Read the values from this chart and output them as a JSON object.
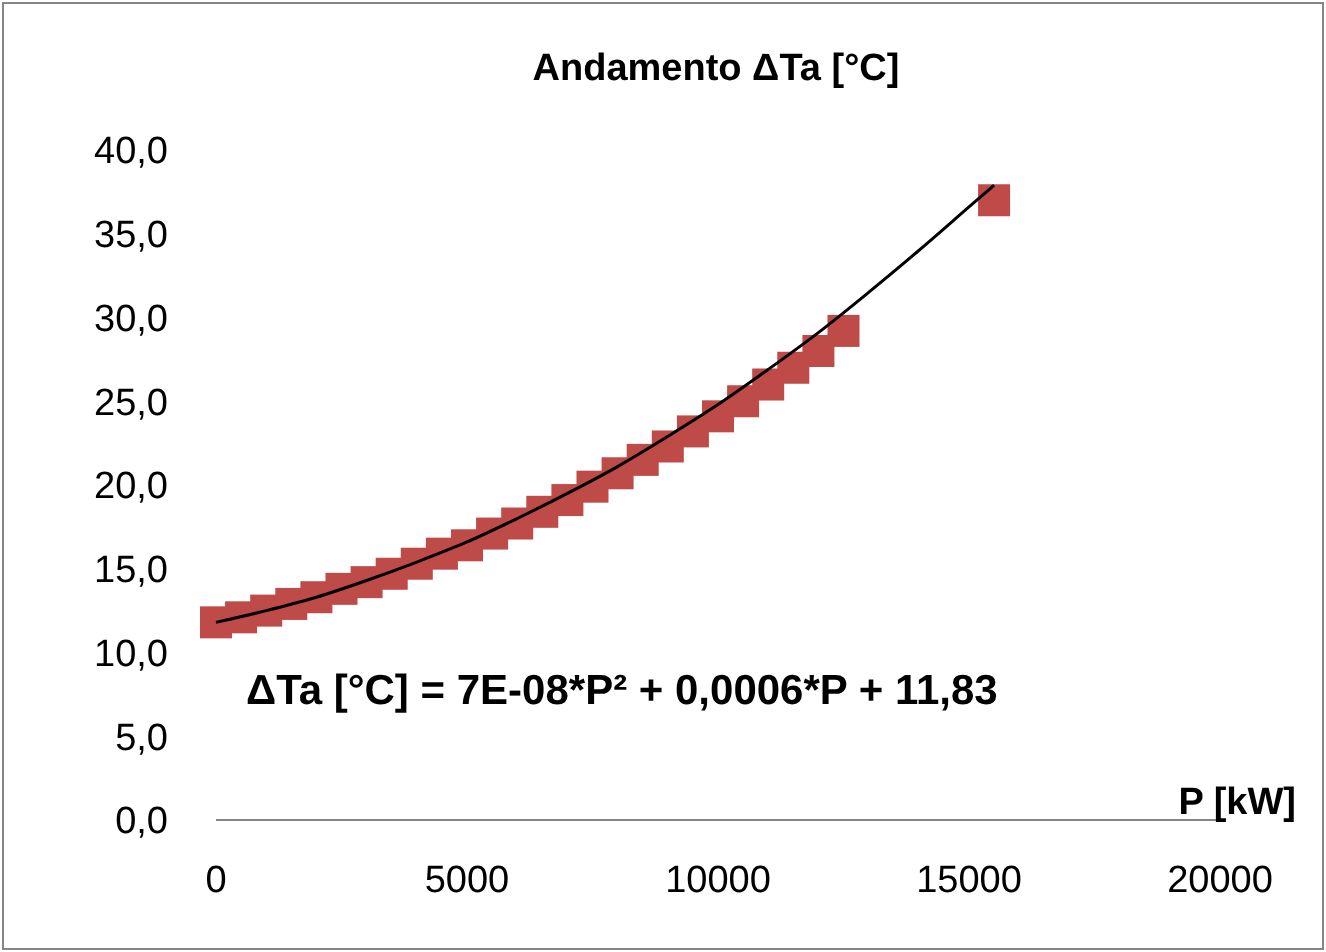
{
  "chart_data": {
    "type": "scatter",
    "title": "Andamento ΔTa [°C]",
    "xlabel": "P [kW]",
    "xlim": [
      0,
      20000
    ],
    "xticks": [
      0,
      5000,
      10000,
      15000,
      20000
    ],
    "ylim": [
      0,
      40
    ],
    "yticks": [
      {
        "value": 0,
        "label": "0,0"
      },
      {
        "value": 5,
        "label": "5,0"
      },
      {
        "value": 10,
        "label": "10,0"
      },
      {
        "value": 15,
        "label": "15,0"
      },
      {
        "value": 20,
        "label": "20,0"
      },
      {
        "value": 25,
        "label": "25,0"
      },
      {
        "value": 30,
        "label": "30,0"
      },
      {
        "value": 35,
        "label": "35,0"
      },
      {
        "value": 40,
        "label": "40,0"
      }
    ],
    "grid": false,
    "annotations": [
      "ΔTa [°C] = 7E-08*P² + 0,0006*P + 11,83"
    ],
    "series": [
      {
        "color": "#be4b48",
        "marker": "square",
        "x": [
          0,
          500,
          1000,
          1500,
          2000,
          2500,
          3000,
          3500,
          4000,
          4500,
          5000,
          5500,
          6000,
          6500,
          7000,
          7500,
          8000,
          8500,
          9000,
          9500,
          10000,
          10500,
          11000,
          11500,
          12000,
          12500,
          15500
        ],
        "values": [
          11.8,
          12.1,
          12.5,
          12.9,
          13.3,
          13.8,
          14.2,
          14.7,
          15.3,
          15.9,
          16.4,
          17.1,
          17.7,
          18.4,
          19.1,
          19.9,
          20.7,
          21.5,
          22.3,
          23.2,
          24.1,
          25.0,
          26.0,
          27.0,
          28.0,
          29.2,
          37.0
        ]
      },
      {
        "type": "line",
        "color": "#000000",
        "marker": "none",
        "line_style": "solid",
        "x": [
          0,
          1000,
          2000,
          3000,
          4000,
          5000,
          6000,
          7000,
          8000,
          9000,
          10000,
          11000,
          12000,
          13000,
          14000,
          15000,
          15500
        ],
        "values": [
          11.8,
          12.5,
          13.3,
          14.3,
          15.4,
          16.6,
          18.0,
          19.5,
          21.1,
          22.9,
          24.8,
          26.9,
          29.1,
          31.5,
          34.0,
          36.6,
          37.9
        ]
      }
    ]
  }
}
